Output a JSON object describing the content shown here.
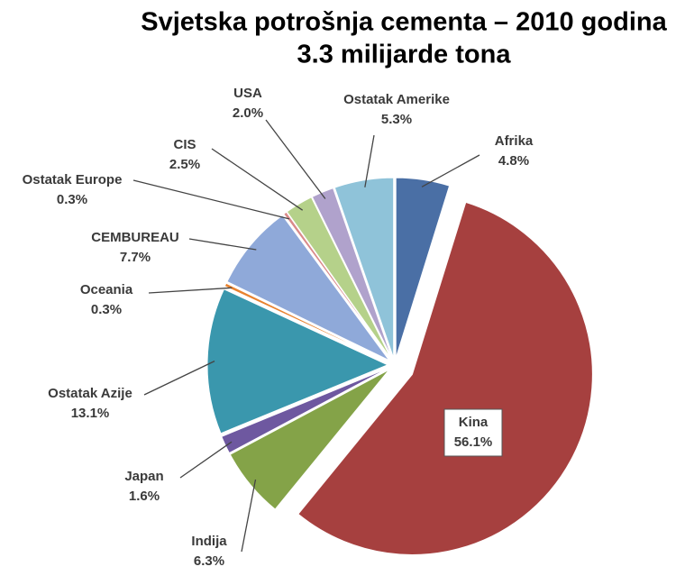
{
  "chart_data": {
    "type": "pie",
    "title": "Svjetska potrošnja cementa – 2010 godina",
    "subtitle": "3.3 milijarde tona",
    "categories": [
      "Afrika",
      "Kina",
      "Indija",
      "Japan",
      "Ostatak Azije",
      "Oceania",
      "CEMBUREAU",
      "Ostatak Europe",
      "CIS",
      "USA",
      "Ostatak Amerike"
    ],
    "values": [
      4.8,
      56.1,
      6.3,
      1.6,
      13.1,
      0.3,
      7.7,
      0.3,
      2.5,
      2.0,
      5.3
    ],
    "value_labels": [
      "4.8%",
      "56.1%",
      "6.3%",
      "1.6%",
      "13.1%",
      "0.3%",
      "7.7%",
      "0.3%",
      "2.5%",
      "2.0%",
      "5.3%"
    ],
    "colors": [
      "#4a6fa5",
      "#a6403f",
      "#84a348",
      "#6e58a0",
      "#3a97ad",
      "#e8822f",
      "#8fa9d9",
      "#d98a8a",
      "#b5d18a",
      "#b0a2cc",
      "#8fc3d9"
    ]
  }
}
